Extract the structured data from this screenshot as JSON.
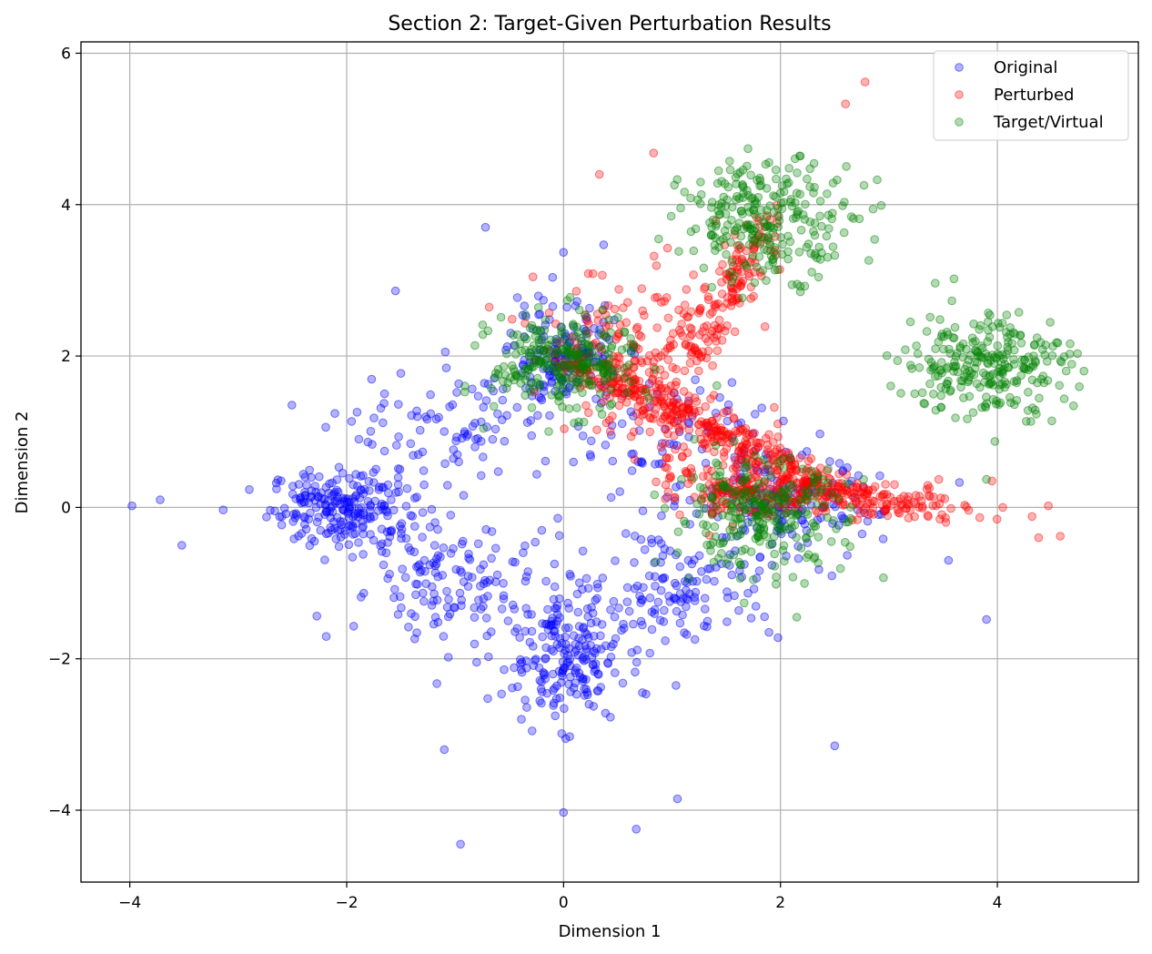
{
  "chart_data": {
    "type": "scatter",
    "title": "Section 2: Target-Given Perturbation Results",
    "xlabel": "Dimension 1",
    "ylabel": "Dimension 2",
    "xlim": [
      -4.45,
      5.3
    ],
    "ylim": [
      -4.95,
      6.15
    ],
    "xticks": [
      -4,
      -2,
      0,
      2,
      4
    ],
    "yticks": [
      -4,
      -2,
      0,
      2,
      4,
      6
    ],
    "xtick_labels": [
      "−4",
      "−2",
      "0",
      "2",
      "4"
    ],
    "ytick_labels": [
      "−4",
      "−2",
      "0",
      "2",
      "4",
      "6"
    ],
    "grid": true,
    "legend_position": "top-right",
    "marker_alpha": 0.3,
    "series": [
      {
        "name": "Original",
        "color": "#0000ff",
        "clusters": [
          {
            "center": [
              -2.0,
              0.0
            ],
            "sd": [
              0.35,
              0.25
            ],
            "n": 230
          },
          {
            "center": [
              0.0,
              -2.0
            ],
            "sd": [
              0.28,
              0.4
            ],
            "n": 200
          },
          {
            "center": [
              0.0,
              2.0
            ],
            "sd": [
              0.25,
              0.35
            ],
            "n": 160
          },
          {
            "center": [
              2.0,
              0.0
            ],
            "sd": [
              0.45,
              0.35
            ],
            "n": 150
          },
          {
            "center": [
              -1.0,
              -1.0
            ],
            "sd": [
              0.5,
              0.4
            ],
            "n": 140
          },
          {
            "center": [
              1.0,
              -1.0
            ],
            "sd": [
              0.5,
              0.4
            ],
            "n": 140
          },
          {
            "center": [
              -1.0,
              1.0
            ],
            "sd": [
              0.5,
              0.4
            ],
            "n": 90
          },
          {
            "center": [
              1.0,
              1.0
            ],
            "sd": [
              0.5,
              0.4
            ],
            "n": 70
          }
        ],
        "points": [
          [
            -3.98,
            0.02
          ],
          [
            -3.72,
            0.1
          ],
          [
            -3.52,
            -0.5
          ],
          [
            -1.55,
            2.86
          ],
          [
            -0.72,
            3.7
          ],
          [
            -0.95,
            -4.45
          ],
          [
            0.0,
            -4.03
          ],
          [
            0.67,
            -4.25
          ],
          [
            1.05,
            -3.85
          ],
          [
            2.5,
            -3.15
          ],
          [
            3.9,
            -1.48
          ],
          [
            3.55,
            -0.7
          ],
          [
            3.65,
            0.33
          ],
          [
            0.0,
            3.37
          ],
          [
            0.37,
            3.47
          ],
          [
            -1.1,
            -3.2
          ]
        ]
      },
      {
        "name": "Perturbed",
        "color": "#ff0000",
        "paths": [
          {
            "from": [
              0.0,
              2.0
            ],
            "to": [
              2.7,
              0.1
            ],
            "sd": [
              0.15,
              0.07
            ],
            "n": 320
          },
          {
            "from": [
              2.0,
              0.2
            ],
            "to": [
              3.5,
              0.0
            ],
            "sd": [
              0.25,
              0.12
            ],
            "n": 160
          },
          {
            "from": [
              1.2,
              2.0
            ],
            "to": [
              1.9,
              3.8
            ],
            "sd": [
              0.12,
              0.12
            ],
            "n": 130
          },
          {
            "from": [
              0.4,
              2.2
            ],
            "to": [
              1.5,
              0.3
            ],
            "sd": [
              0.3,
              0.3
            ],
            "n": 200
          }
        ],
        "clusters": [
          {
            "center": [
              1.7,
              0.2
            ],
            "sd": [
              0.3,
              0.15
            ],
            "n": 120
          },
          {
            "center": [
              0.8,
              2.3
            ],
            "sd": [
              0.5,
              0.45
            ],
            "n": 90
          }
        ],
        "points": [
          [
            2.6,
            5.33
          ],
          [
            2.78,
            5.62
          ],
          [
            0.33,
            4.4
          ],
          [
            0.83,
            4.68
          ],
          [
            4.47,
            0.02
          ],
          [
            4.38,
            -0.4
          ],
          [
            4.58,
            -0.38
          ],
          [
            4.32,
            -0.12
          ],
          [
            4.05,
            0.0
          ],
          [
            3.95,
            0.35
          ]
        ]
      },
      {
        "name": "Target/Virtual",
        "color": "#008000",
        "clusters": [
          {
            "center": [
              0.0,
              1.9
            ],
            "sd": [
              0.33,
              0.32
            ],
            "n": 260
          },
          {
            "center": [
              1.9,
              3.8
            ],
            "sd": [
              0.4,
              0.38
            ],
            "n": 260
          },
          {
            "center": [
              3.9,
              1.9
            ],
            "sd": [
              0.38,
              0.35
            ],
            "n": 260
          },
          {
            "center": [
              1.8,
              -0.1
            ],
            "sd": [
              0.4,
              0.35
            ],
            "n": 260
          }
        ],
        "points": [
          [
            2.15,
            -1.45
          ],
          [
            2.95,
            -0.93
          ],
          [
            3.9,
            0.37
          ],
          [
            3.6,
            3.02
          ]
        ]
      }
    ]
  }
}
